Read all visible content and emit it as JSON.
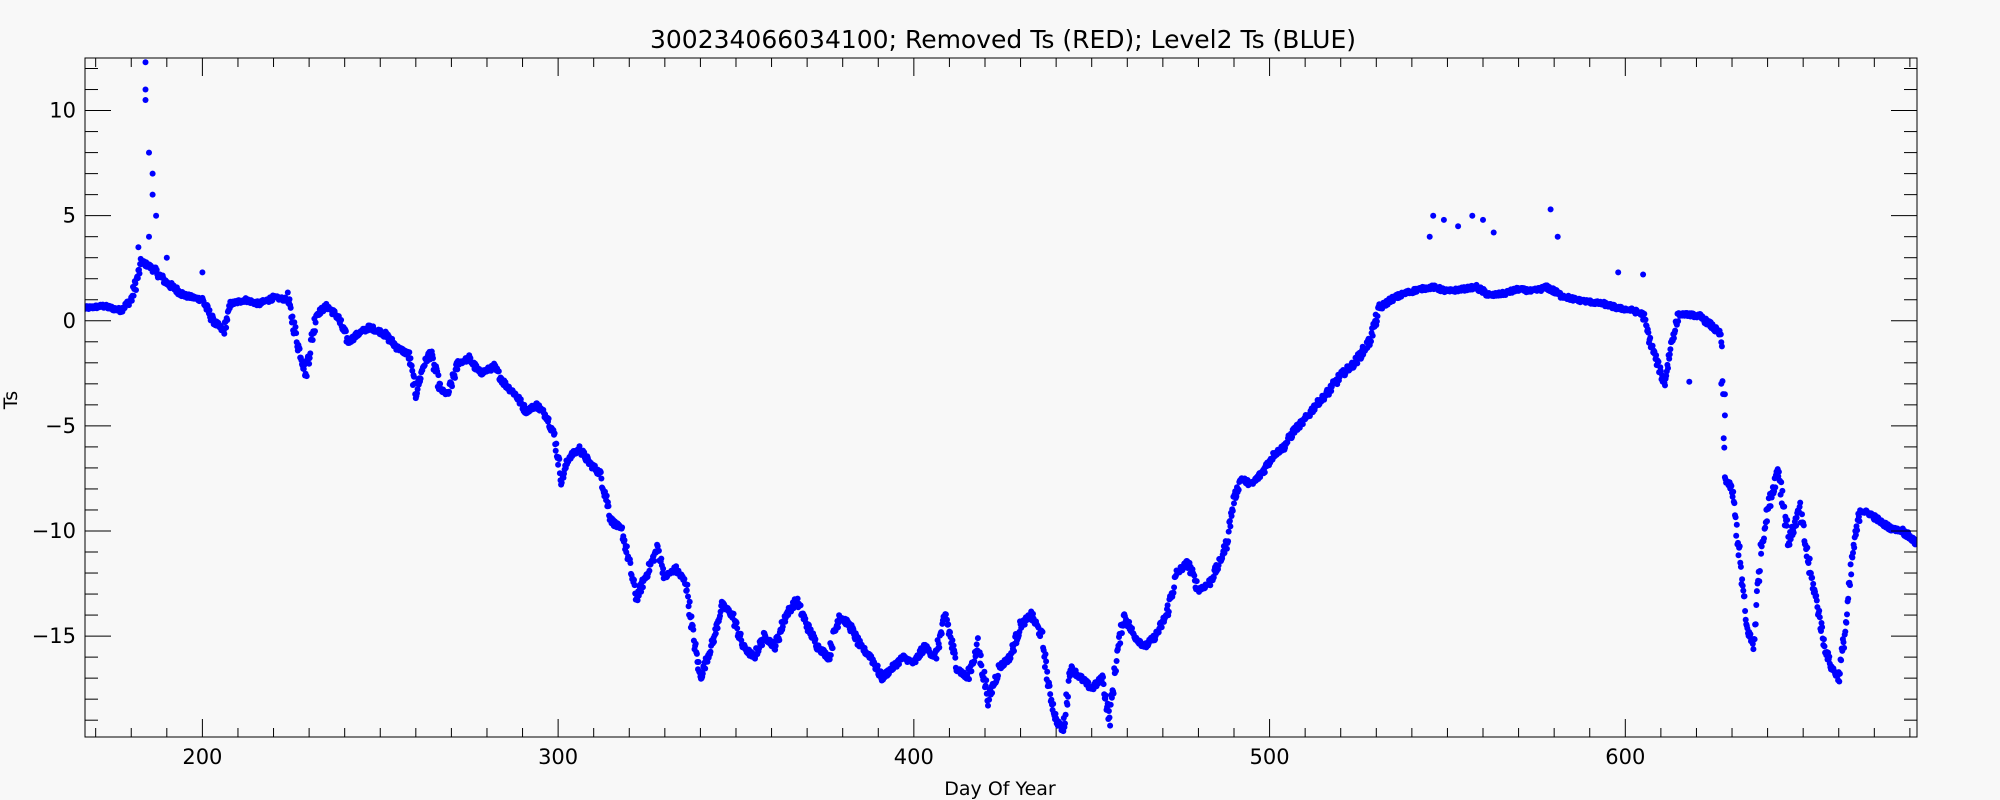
{
  "chart_data": {
    "type": "scatter",
    "title": "300234066034100; Removed Ts (RED); Level2 Ts (BLUE)",
    "xlabel": "Day Of Year",
    "ylabel": "Ts",
    "xlim": [
      167,
      682
    ],
    "ylim": [
      -19.8,
      12.5
    ],
    "x_ticks": [
      200,
      300,
      400,
      500,
      600
    ],
    "y_ticks": [
      10,
      5,
      0,
      -5,
      -10,
      -15
    ],
    "x_ticks_minor_step": 10,
    "y_ticks_minor_step": 1,
    "grid": false,
    "point_color": "#0000ff",
    "frame_color": "#000000",
    "background": "#f8f8f8",
    "series": [
      {
        "trace": [
          [
            167,
            0.6
          ],
          [
            172,
            0.7
          ],
          [
            177,
            0.5
          ],
          [
            180,
            1.0
          ],
          [
            183,
            2.8
          ],
          [
            186,
            2.5
          ],
          [
            190,
            1.8
          ],
          [
            195,
            1.2
          ],
          [
            200,
            1.0
          ],
          [
            203,
            0.0
          ],
          [
            206,
            -0.5
          ],
          [
            208,
            0.8
          ],
          [
            212,
            1.0
          ],
          [
            216,
            0.8
          ],
          [
            220,
            1.1
          ],
          [
            224,
            1.0
          ],
          [
            227,
            -1.2
          ],
          [
            229,
            -2.5
          ],
          [
            232,
            0.3
          ],
          [
            235,
            0.7
          ],
          [
            238,
            0.2
          ],
          [
            241,
            -1.0
          ],
          [
            244,
            -0.6
          ],
          [
            247,
            -0.3
          ],
          [
            251,
            -0.6
          ],
          [
            255,
            -1.3
          ],
          [
            258,
            -1.6
          ],
          [
            260,
            -3.5
          ],
          [
            262,
            -2.2
          ],
          [
            264,
            -1.5
          ],
          [
            267,
            -3.3
          ],
          [
            269,
            -3.5
          ],
          [
            272,
            -2.0
          ],
          [
            275,
            -1.8
          ],
          [
            278,
            -2.5
          ],
          [
            282,
            -2.2
          ],
          [
            285,
            -3.0
          ],
          [
            288,
            -3.5
          ],
          [
            291,
            -4.3
          ],
          [
            294,
            -4.0
          ],
          [
            297,
            -4.6
          ],
          [
            299,
            -5.5
          ],
          [
            301,
            -7.6
          ],
          [
            303,
            -6.5
          ],
          [
            306,
            -6.1
          ],
          [
            309,
            -6.8
          ],
          [
            312,
            -7.3
          ],
          [
            315,
            -9.5
          ],
          [
            318,
            -10.0
          ],
          [
            320,
            -11.5
          ],
          [
            322,
            -13.2
          ],
          [
            325,
            -12.0
          ],
          [
            328,
            -10.8
          ],
          [
            330,
            -12.2
          ],
          [
            333,
            -11.8
          ],
          [
            336,
            -12.5
          ],
          [
            338,
            -15.0
          ],
          [
            340,
            -17.0
          ],
          [
            342,
            -16.0
          ],
          [
            344,
            -15.0
          ],
          [
            346,
            -13.5
          ],
          [
            349,
            -14.0
          ],
          [
            352,
            -15.5
          ],
          [
            355,
            -16.0
          ],
          [
            358,
            -15.0
          ],
          [
            361,
            -15.5
          ],
          [
            364,
            -14.0
          ],
          [
            367,
            -13.3
          ],
          [
            370,
            -14.5
          ],
          [
            373,
            -15.5
          ],
          [
            376,
            -16.0
          ],
          [
            379,
            -14.0
          ],
          [
            382,
            -14.5
          ],
          [
            385,
            -15.5
          ],
          [
            388,
            -16.0
          ],
          [
            391,
            -17.0
          ],
          [
            394,
            -16.5
          ],
          [
            397,
            -16.0
          ],
          [
            400,
            -16.3
          ],
          [
            403,
            -15.5
          ],
          [
            406,
            -16.0
          ],
          [
            409,
            -14.0
          ],
          [
            412,
            -16.5
          ],
          [
            415,
            -17.0
          ],
          [
            418,
            -15.5
          ],
          [
            421,
            -18.0
          ],
          [
            424,
            -16.5
          ],
          [
            427,
            -16.0
          ],
          [
            430,
            -14.5
          ],
          [
            433,
            -14.0
          ],
          [
            436,
            -15.0
          ],
          [
            438,
            -17.5
          ],
          [
            440,
            -19.0
          ],
          [
            442,
            -19.5
          ],
          [
            444,
            -16.5
          ],
          [
            447,
            -17.0
          ],
          [
            450,
            -17.5
          ],
          [
            453,
            -17.0
          ],
          [
            455,
            -19.0
          ],
          [
            457,
            -16.0
          ],
          [
            459,
            -14.0
          ],
          [
            462,
            -15.0
          ],
          [
            465,
            -15.5
          ],
          [
            468,
            -15.0
          ],
          [
            471,
            -14.0
          ],
          [
            474,
            -12.0
          ],
          [
            477,
            -11.5
          ],
          [
            480,
            -12.8
          ],
          [
            483,
            -12.5
          ],
          [
            486,
            -11.5
          ],
          [
            488,
            -10.5
          ],
          [
            490,
            -8.5
          ],
          [
            492,
            -7.5
          ],
          [
            495,
            -7.8
          ],
          [
            498,
            -7.2
          ],
          [
            501,
            -6.4
          ],
          [
            504,
            -6.0
          ],
          [
            507,
            -5.2
          ],
          [
            510,
            -4.7
          ],
          [
            513,
            -4.0
          ],
          [
            516,
            -3.5
          ],
          [
            520,
            -2.6
          ],
          [
            524,
            -2.0
          ],
          [
            528,
            -1.0
          ],
          [
            531,
            0.6
          ],
          [
            534,
            1.0
          ],
          [
            538,
            1.3
          ],
          [
            542,
            1.5
          ],
          [
            546,
            1.6
          ],
          [
            550,
            1.4
          ],
          [
            554,
            1.5
          ],
          [
            558,
            1.6
          ],
          [
            562,
            1.2
          ],
          [
            566,
            1.3
          ],
          [
            570,
            1.5
          ],
          [
            574,
            1.4
          ],
          [
            578,
            1.6
          ],
          [
            582,
            1.2
          ],
          [
            586,
            1.0
          ],
          [
            590,
            0.9
          ],
          [
            594,
            0.8
          ],
          [
            598,
            0.6
          ],
          [
            602,
            0.5
          ],
          [
            605,
            0.3
          ],
          [
            607,
            -1.0
          ],
          [
            609,
            -2.0
          ],
          [
            611,
            -3.0
          ],
          [
            613,
            -1.0
          ],
          [
            615,
            0.3
          ],
          [
            618,
            0.3
          ],
          [
            621,
            0.2
          ],
          [
            624,
            -0.2
          ],
          [
            627,
            -0.7
          ],
          [
            628,
            -7.5
          ],
          [
            630,
            -8.0
          ],
          [
            632,
            -11.0
          ],
          [
            634,
            -14.5
          ],
          [
            636,
            -15.5
          ],
          [
            638,
            -11.0
          ],
          [
            640,
            -9.0
          ],
          [
            643,
            -7.0
          ],
          [
            646,
            -10.5
          ],
          [
            649,
            -9.0
          ],
          [
            652,
            -12.0
          ],
          [
            654,
            -13.5
          ],
          [
            656,
            -15.5
          ],
          [
            658,
            -16.5
          ],
          [
            660,
            -17.0
          ],
          [
            662,
            -14.5
          ],
          [
            664,
            -11.0
          ],
          [
            666,
            -9.0
          ],
          [
            669,
            -9.2
          ],
          [
            672,
            -9.6
          ],
          [
            675,
            -9.9
          ],
          [
            678,
            -10.0
          ],
          [
            682,
            -10.6
          ]
        ],
        "spikes": [
          [
            184,
            12.3
          ],
          [
            184,
            11.0
          ],
          [
            184,
            10.5
          ],
          [
            185,
            8.0
          ],
          [
            186,
            7.0
          ],
          [
            186,
            6.0
          ],
          [
            187,
            5.0
          ],
          [
            185,
            4.0
          ],
          [
            182,
            3.5
          ],
          [
            190,
            3.0
          ],
          [
            200,
            2.3
          ],
          [
            546,
            5.0
          ],
          [
            549,
            4.8
          ],
          [
            545,
            4.0
          ],
          [
            553,
            4.5
          ],
          [
            557,
            5.0
          ],
          [
            560,
            4.8
          ],
          [
            563,
            4.2
          ],
          [
            579,
            5.3
          ],
          [
            581,
            4.0
          ],
          [
            598,
            2.3
          ],
          [
            605,
            2.2
          ]
        ],
        "gap_points": [
          [
            618,
            -2.9
          ],
          [
            627,
            -3.0
          ],
          [
            628,
            -3.5
          ],
          [
            628,
            -4.5
          ]
        ]
      }
    ]
  }
}
